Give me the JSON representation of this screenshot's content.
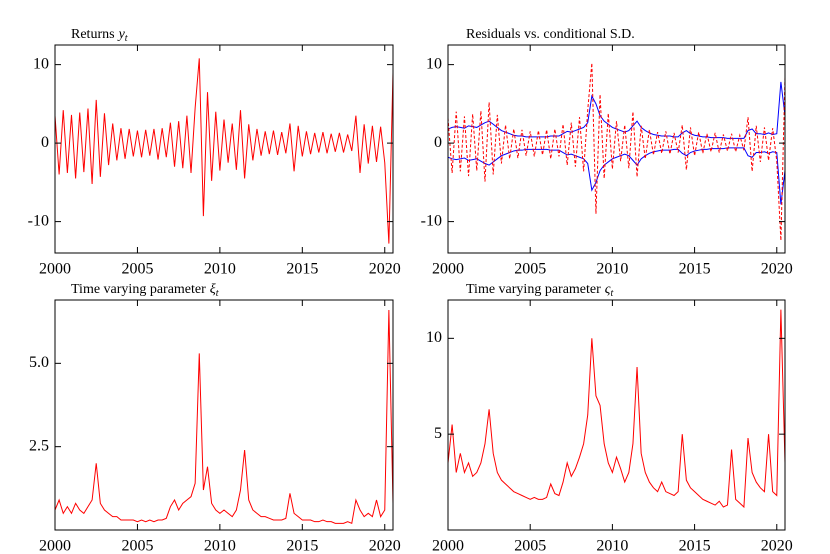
{
  "chart_data": [
    {
      "type": "line",
      "title": "Returns",
      "title_symbol": "y",
      "title_subscript": "t",
      "x": [
        2000,
        2000.25,
        2000.5,
        2000.75,
        2001,
        2001.25,
        2001.5,
        2001.75,
        2002,
        2002.25,
        2002.5,
        2002.75,
        2003,
        2003.25,
        2003.5,
        2003.75,
        2004,
        2004.25,
        2004.5,
        2004.75,
        2005,
        2005.25,
        2005.5,
        2005.75,
        2006,
        2006.25,
        2006.5,
        2006.75,
        2007,
        2007.25,
        2007.5,
        2007.75,
        2008,
        2008.25,
        2008.5,
        2008.75,
        2009,
        2009.25,
        2009.5,
        2009.75,
        2010,
        2010.25,
        2010.5,
        2010.75,
        2011,
        2011.25,
        2011.5,
        2011.75,
        2012,
        2012.25,
        2012.5,
        2012.75,
        2013,
        2013.25,
        2013.5,
        2013.75,
        2014,
        2014.25,
        2014.5,
        2014.75,
        2015,
        2015.25,
        2015.5,
        2015.75,
        2016,
        2016.25,
        2016.5,
        2016.75,
        2017,
        2017.25,
        2017.5,
        2017.75,
        2018,
        2018.25,
        2018.5,
        2018.75,
        2019,
        2019.25,
        2019.5,
        2019.75,
        2020,
        2020.25,
        2020.5
      ],
      "series": [
        {
          "color": "#ff0000",
          "values": [
            3.5,
            -4,
            4.2,
            -3.8,
            3.6,
            -4.5,
            3.9,
            -3.7,
            4.4,
            -5.2,
            5.5,
            -4.3,
            3.8,
            -2.8,
            2.5,
            -2.2,
            1.9,
            -2,
            1.8,
            -1.7,
            1.6,
            -1.8,
            1.7,
            -1.6,
            1.8,
            -2.1,
            1.9,
            -1.8,
            2.6,
            -3,
            2.8,
            -3.2,
            3.5,
            -3.8,
            4.5,
            10.8,
            -9.3,
            6.5,
            -4.8,
            4,
            -3.5,
            3,
            -2.5,
            2.5,
            -3.4,
            4.2,
            -4.5,
            2.4,
            -2.2,
            1.8,
            -1.6,
            1.5,
            -1.4,
            1.6,
            -1.5,
            1.4,
            -1.3,
            2.5,
            -3.6,
            2.2,
            -1.7,
            1.5,
            -1.4,
            1.3,
            -1.2,
            1.4,
            -1.3,
            1.2,
            -1.1,
            1.3,
            -1.2,
            1.1,
            -1.0,
            3.5,
            -3.8,
            2.4,
            -2.6,
            2.2,
            -2.4,
            2.1,
            -2.5,
            -12.8,
            9
          ]
        }
      ],
      "xlim": [
        2000,
        2020.5
      ],
      "ylim": [
        -14,
        12.5
      ],
      "xticks": [
        2000,
        2005,
        2010,
        2015,
        2020
      ],
      "yticks": [
        -10,
        0,
        10
      ]
    },
    {
      "type": "line",
      "title": "Residuals vs. conditional S.D.",
      "x": [
        2000,
        2000.25,
        2000.5,
        2000.75,
        2001,
        2001.25,
        2001.5,
        2001.75,
        2002,
        2002.25,
        2002.5,
        2002.75,
        2003,
        2003.25,
        2003.5,
        2003.75,
        2004,
        2004.25,
        2004.5,
        2004.75,
        2005,
        2005.25,
        2005.5,
        2005.75,
        2006,
        2006.25,
        2006.5,
        2006.75,
        2007,
        2007.25,
        2007.5,
        2007.75,
        2008,
        2008.25,
        2008.5,
        2008.75,
        2009,
        2009.25,
        2009.5,
        2009.75,
        2010,
        2010.25,
        2010.5,
        2010.75,
        2011,
        2011.25,
        2011.5,
        2011.75,
        2012,
        2012.25,
        2012.5,
        2012.75,
        2013,
        2013.25,
        2013.5,
        2013.75,
        2014,
        2014.25,
        2014.5,
        2014.75,
        2015,
        2015.25,
        2015.5,
        2015.75,
        2016,
        2016.25,
        2016.5,
        2016.75,
        2017,
        2017.25,
        2017.5,
        2017.75,
        2018,
        2018.25,
        2018.5,
        2018.75,
        2019,
        2019.25,
        2019.5,
        2019.75,
        2020,
        2020.25,
        2020.5
      ],
      "series": [
        {
          "color": "#0000ff",
          "values": [
            1.8,
            2,
            2.1,
            2,
            1.9,
            2.2,
            2.1,
            2,
            2.3,
            2.6,
            2.8,
            2.4,
            2,
            1.6,
            1.4,
            1.2,
            1,
            0.9,
            0.9,
            0.8,
            0.8,
            0.8,
            0.8,
            0.8,
            0.8,
            0.9,
            0.9,
            0.9,
            1.2,
            1.5,
            1.4,
            1.6,
            1.8,
            2,
            2.6,
            6,
            5,
            3.5,
            2.8,
            2.4,
            2,
            1.8,
            1.6,
            1.4,
            1.6,
            2.2,
            2.8,
            2,
            1.6,
            1.3,
            1.1,
            1,
            0.9,
            0.9,
            0.9,
            0.8,
            0.8,
            1.3,
            1.6,
            1.2,
            1,
            0.9,
            0.8,
            0.8,
            0.7,
            0.7,
            0.7,
            0.7,
            0.6,
            0.6,
            0.6,
            0.6,
            0.6,
            1.6,
            1.8,
            1.2,
            1.2,
            1.1,
            1.3,
            1.1,
            1.2,
            7.8,
            3.5
          ]
        },
        {
          "color": "#0000ff",
          "values": [
            -1.8,
            -2,
            -2.1,
            -2,
            -1.9,
            -2.2,
            -2.1,
            -2,
            -2.3,
            -2.6,
            -2.8,
            -2.4,
            -2,
            -1.6,
            -1.4,
            -1.2,
            -1,
            -0.9,
            -0.9,
            -0.8,
            -0.8,
            -0.8,
            -0.8,
            -0.8,
            -0.8,
            -0.9,
            -0.9,
            -0.9,
            -1.2,
            -1.5,
            -1.4,
            -1.6,
            -1.8,
            -2,
            -2.6,
            -6,
            -5,
            -3.5,
            -2.8,
            -2.4,
            -2,
            -1.8,
            -1.6,
            -1.4,
            -1.6,
            -2.2,
            -2.8,
            -2,
            -1.6,
            -1.3,
            -1.1,
            -1,
            -0.9,
            -0.9,
            -0.9,
            -0.8,
            -0.8,
            -1.3,
            -1.6,
            -1.2,
            -1,
            -0.9,
            -0.8,
            -0.8,
            -0.7,
            -0.7,
            -0.7,
            -0.7,
            -0.6,
            -0.6,
            -0.6,
            -0.6,
            -0.6,
            -1.6,
            -1.8,
            -1.2,
            -1.2,
            -1.1,
            -1.3,
            -1.1,
            -1.2,
            -7.8,
            -3.5
          ]
        },
        {
          "color": "#ff0000",
          "dashed": true,
          "values": [
            3.2,
            -3.8,
            4,
            -3.6,
            3.4,
            -4.2,
            3.7,
            -3.5,
            4.1,
            -4.9,
            5.2,
            -4,
            3.6,
            -2.6,
            2.3,
            -2,
            1.8,
            -1.9,
            1.7,
            -1.6,
            1.5,
            -1.7,
            1.6,
            -1.5,
            1.7,
            -2,
            1.8,
            -1.7,
            2.4,
            -2.8,
            2.6,
            -3,
            3.3,
            -3.6,
            4.2,
            10.2,
            -9,
            6.2,
            -4.5,
            3.8,
            -3.3,
            2.8,
            -2.3,
            2.3,
            -3.2,
            4,
            -4.3,
            2.2,
            -2,
            1.7,
            -1.5,
            1.4,
            -1.3,
            1.5,
            -1.4,
            1.3,
            -1.2,
            2.3,
            -3.4,
            2,
            -1.6,
            1.4,
            -1.3,
            1.2,
            -1.1,
            1.3,
            -1.2,
            1.1,
            -1,
            1.2,
            -1.1,
            1,
            -0.9,
            3.3,
            -3.6,
            2.2,
            -2.4,
            2,
            -2.2,
            1.9,
            -2.3,
            -12.4,
            8.4
          ]
        }
      ],
      "xlim": [
        2000,
        2020.5
      ],
      "ylim": [
        -14,
        12.5
      ],
      "xticks": [
        2000,
        2005,
        2010,
        2015,
        2020
      ],
      "yticks": [
        -10,
        0,
        10
      ]
    },
    {
      "type": "line",
      "title": "Time varying parameter",
      "title_symbol": "ξ",
      "title_subscript": "t",
      "x": [
        2000,
        2000.25,
        2000.5,
        2000.75,
        2001,
        2001.25,
        2001.5,
        2001.75,
        2002,
        2002.25,
        2002.5,
        2002.75,
        2003,
        2003.25,
        2003.5,
        2003.75,
        2004,
        2004.25,
        2004.5,
        2004.75,
        2005,
        2005.25,
        2005.5,
        2005.75,
        2006,
        2006.25,
        2006.5,
        2006.75,
        2007,
        2007.25,
        2007.5,
        2007.75,
        2008,
        2008.25,
        2008.5,
        2008.75,
        2009,
        2009.25,
        2009.5,
        2009.75,
        2010,
        2010.25,
        2010.5,
        2010.75,
        2011,
        2011.25,
        2011.5,
        2011.75,
        2012,
        2012.25,
        2012.5,
        2012.75,
        2013,
        2013.25,
        2013.5,
        2013.75,
        2014,
        2014.25,
        2014.5,
        2014.75,
        2015,
        2015.25,
        2015.5,
        2015.75,
        2016,
        2016.25,
        2016.5,
        2016.75,
        2017,
        2017.25,
        2017.5,
        2017.75,
        2018,
        2018.25,
        2018.5,
        2018.75,
        2019,
        2019.25,
        2019.5,
        2019.75,
        2020,
        2020.25,
        2020.5
      ],
      "series": [
        {
          "color": "#ff0000",
          "values": [
            0.6,
            0.9,
            0.5,
            0.7,
            0.5,
            0.8,
            0.6,
            0.5,
            0.7,
            0.9,
            2.0,
            0.8,
            0.6,
            0.5,
            0.4,
            0.4,
            0.3,
            0.3,
            0.3,
            0.3,
            0.25,
            0.3,
            0.25,
            0.3,
            0.25,
            0.3,
            0.3,
            0.35,
            0.7,
            0.9,
            0.6,
            0.8,
            0.9,
            1.0,
            1.4,
            5.3,
            1.2,
            1.9,
            0.8,
            0.6,
            0.5,
            0.6,
            0.5,
            0.4,
            0.6,
            1.2,
            2.4,
            0.9,
            0.6,
            0.5,
            0.4,
            0.4,
            0.35,
            0.3,
            0.3,
            0.3,
            0.35,
            1.1,
            0.5,
            0.4,
            0.3,
            0.3,
            0.3,
            0.25,
            0.25,
            0.3,
            0.25,
            0.25,
            0.2,
            0.2,
            0.2,
            0.25,
            0.2,
            0.9,
            0.6,
            0.4,
            0.5,
            0.4,
            0.9,
            0.4,
            0.6,
            6.6,
            0.8
          ]
        }
      ],
      "xlim": [
        2000,
        2020.5
      ],
      "ylim": [
        0,
        6.9
      ],
      "xticks": [
        2000,
        2005,
        2010,
        2015,
        2020
      ],
      "yticks": [
        2.5,
        {
          "value": 5,
          "label": "5.0"
        }
      ]
    },
    {
      "type": "line",
      "title": "Time varying parameter",
      "title_symbol": "ς",
      "title_subscript": "t",
      "x": [
        2000,
        2000.25,
        2000.5,
        2000.75,
        2001,
        2001.25,
        2001.5,
        2001.75,
        2002,
        2002.25,
        2002.5,
        2002.75,
        2003,
        2003.25,
        2003.5,
        2003.75,
        2004,
        2004.25,
        2004.5,
        2004.75,
        2005,
        2005.25,
        2005.5,
        2005.75,
        2006,
        2006.25,
        2006.5,
        2006.75,
        2007,
        2007.25,
        2007.5,
        2007.75,
        2008,
        2008.25,
        2008.5,
        2008.75,
        2009,
        2009.25,
        2009.5,
        2009.75,
        2010,
        2010.25,
        2010.5,
        2010.75,
        2011,
        2011.25,
        2011.5,
        2011.75,
        2012,
        2012.25,
        2012.5,
        2012.75,
        2013,
        2013.25,
        2013.5,
        2013.75,
        2014,
        2014.25,
        2014.5,
        2014.75,
        2015,
        2015.25,
        2015.5,
        2015.75,
        2016,
        2016.25,
        2016.5,
        2016.75,
        2017,
        2017.25,
        2017.5,
        2017.75,
        2018,
        2018.25,
        2018.5,
        2018.75,
        2019,
        2019.25,
        2019.5,
        2019.75,
        2020,
        2020.25,
        2020.5
      ],
      "series": [
        {
          "color": "#ff0000",
          "values": [
            3.5,
            5.5,
            3,
            4,
            3,
            3.5,
            2.8,
            3,
            3.5,
            4.5,
            6.3,
            4,
            3,
            2.6,
            2.4,
            2.2,
            2.0,
            1.9,
            1.8,
            1.7,
            1.6,
            1.7,
            1.6,
            1.6,
            1.7,
            2.4,
            1.9,
            1.8,
            2.5,
            3.5,
            2.8,
            3.2,
            3.8,
            4.5,
            6,
            10,
            7,
            6.5,
            4.5,
            3.5,
            3,
            3.8,
            3.2,
            2.5,
            3,
            4.5,
            8.5,
            4,
            3,
            2.5,
            2.2,
            2,
            2.5,
            2,
            1.9,
            1.8,
            2,
            5,
            2.6,
            2.2,
            2,
            1.8,
            1.6,
            1.5,
            1.4,
            1.3,
            1.5,
            1.2,
            1.3,
            4.2,
            1.6,
            1.4,
            1.2,
            4.8,
            3,
            2.5,
            2.2,
            2,
            5,
            2,
            1.8,
            11.5,
            3.5
          ]
        }
      ],
      "xlim": [
        2000,
        2020.5
      ],
      "ylim": [
        0,
        12
      ],
      "xticks": [
        2000,
        2005,
        2010,
        2015,
        2020
      ],
      "yticks": [
        5,
        10
      ]
    }
  ]
}
